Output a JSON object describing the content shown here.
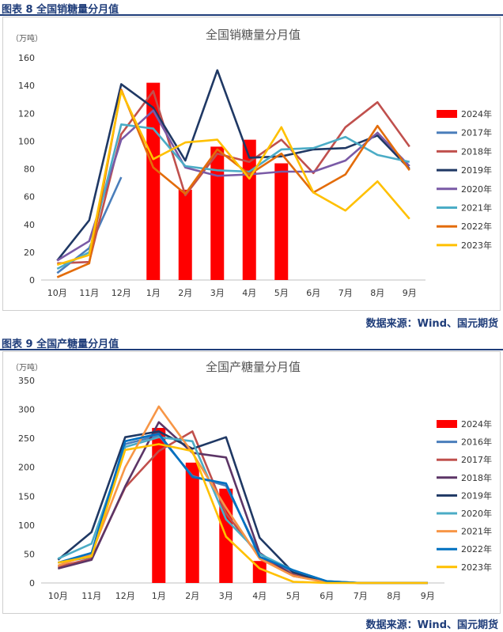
{
  "fig1": {
    "label": "图表 8  全国销糖量分月值",
    "source": "数据来源：Wind、国元期货",
    "chart_data": {
      "type": "bar+line",
      "title": "全国销糖量分月值",
      "unit": "（万吨）",
      "categories": [
        "10月",
        "11月",
        "12月",
        "1月",
        "2月",
        "3月",
        "4月",
        "5月",
        "6月",
        "7月",
        "8月",
        "9月"
      ],
      "ylim": [
        0,
        160
      ],
      "yticks": [
        0,
        20,
        40,
        60,
        80,
        100,
        120,
        140,
        160
      ],
      "legend_position": "right",
      "bar_series": {
        "name": "2024年",
        "color": "#ff0000",
        "values": [
          null,
          null,
          null,
          142,
          65,
          96,
          101,
          84,
          null,
          null,
          null,
          null
        ]
      },
      "series": [
        {
          "name": "2017年",
          "color": "#4a7ebb",
          "values": [
            5,
            23,
            74,
            null,
            null,
            null,
            null,
            null,
            null,
            null,
            null,
            null
          ]
        },
        {
          "name": "2018年",
          "color": "#c0504d",
          "values": [
            12,
            13,
            105,
            136,
            61,
            91,
            85,
            101,
            77,
            110,
            128,
            96
          ]
        },
        {
          "name": "2019年",
          "color": "#1f3864",
          "values": [
            14,
            43,
            141,
            124,
            86,
            151,
            88,
            89,
            94,
            95,
            104,
            80
          ]
        },
        {
          "name": "2020年",
          "color": "#7a5aa6",
          "values": [
            14,
            28,
            101,
            122,
            81,
            75,
            76,
            78,
            78,
            86,
            106,
            82
          ]
        },
        {
          "name": "2021年",
          "color": "#4bacc6",
          "values": [
            8,
            20,
            112,
            109,
            82,
            79,
            78,
            94,
            95,
            103,
            90,
            85
          ]
        },
        {
          "name": "2022年",
          "color": "#e36c0a",
          "values": [
            2,
            12,
            137,
            81,
            62,
            94,
            76,
            91,
            63,
            76,
            111,
            79
          ]
        },
        {
          "name": "2023年",
          "color": "#ffc000",
          "values": [
            11,
            18,
            136,
            87,
            99,
            101,
            73,
            110,
            63,
            50,
            71,
            44
          ]
        }
      ]
    }
  },
  "fig2": {
    "label": "图表 9  全国产糖量分月值",
    "source": "数据来源：Wind、国元期货",
    "chart_data": {
      "type": "bar+line",
      "title": "全国产糖量分月值",
      "unit": "（万吨）",
      "categories": [
        "10月",
        "11月",
        "12月",
        "1月",
        "2月",
        "3月",
        "4月",
        "5月",
        "6月",
        "7月",
        "8月",
        "9月"
      ],
      "ylim": [
        0,
        350
      ],
      "yticks": [
        0,
        50,
        100,
        150,
        200,
        250,
        300,
        350
      ],
      "legend_position": "right",
      "bar_series": {
        "name": "2024年",
        "color": "#ff0000",
        "values": [
          null,
          null,
          null,
          268,
          208,
          163,
          38,
          null,
          null,
          null,
          null,
          null
        ]
      },
      "series": [
        {
          "name": "2016年",
          "color": "#4a7ebb",
          "values": [
            35,
            45,
            240,
            255,
            185,
            168,
            50,
            18,
            3,
            0,
            0,
            0
          ]
        },
        {
          "name": "2017年",
          "color": "#c0504d",
          "values": [
            28,
            42,
            165,
            228,
            262,
            120,
            45,
            15,
            2,
            0,
            0,
            0
          ]
        },
        {
          "name": "2018年",
          "color": "#5c3566",
          "values": [
            25,
            40,
            167,
            278,
            225,
            217,
            52,
            12,
            2,
            0,
            0,
            0
          ]
        },
        {
          "name": "2019年",
          "color": "#1f3864",
          "values": [
            40,
            88,
            252,
            262,
            232,
            252,
            78,
            18,
            2,
            0,
            0,
            0
          ]
        },
        {
          "name": "2020年",
          "color": "#4bacc6",
          "values": [
            42,
            68,
            235,
            252,
            245,
            110,
            50,
            22,
            3,
            0,
            0,
            0
          ]
        },
        {
          "name": "2021年",
          "color": "#f79646",
          "values": [
            30,
            50,
            200,
            305,
            225,
            130,
            42,
            12,
            1,
            0,
            0,
            0
          ]
        },
        {
          "name": "2022年",
          "color": "#0070c0",
          "values": [
            35,
            52,
            245,
            258,
            183,
            172,
            45,
            22,
            3,
            0,
            0,
            0
          ]
        },
        {
          "name": "2023年",
          "color": "#ffc000",
          "values": [
            35,
            46,
            230,
            240,
            228,
            80,
            25,
            2,
            0,
            0,
            0,
            0
          ]
        }
      ]
    }
  }
}
